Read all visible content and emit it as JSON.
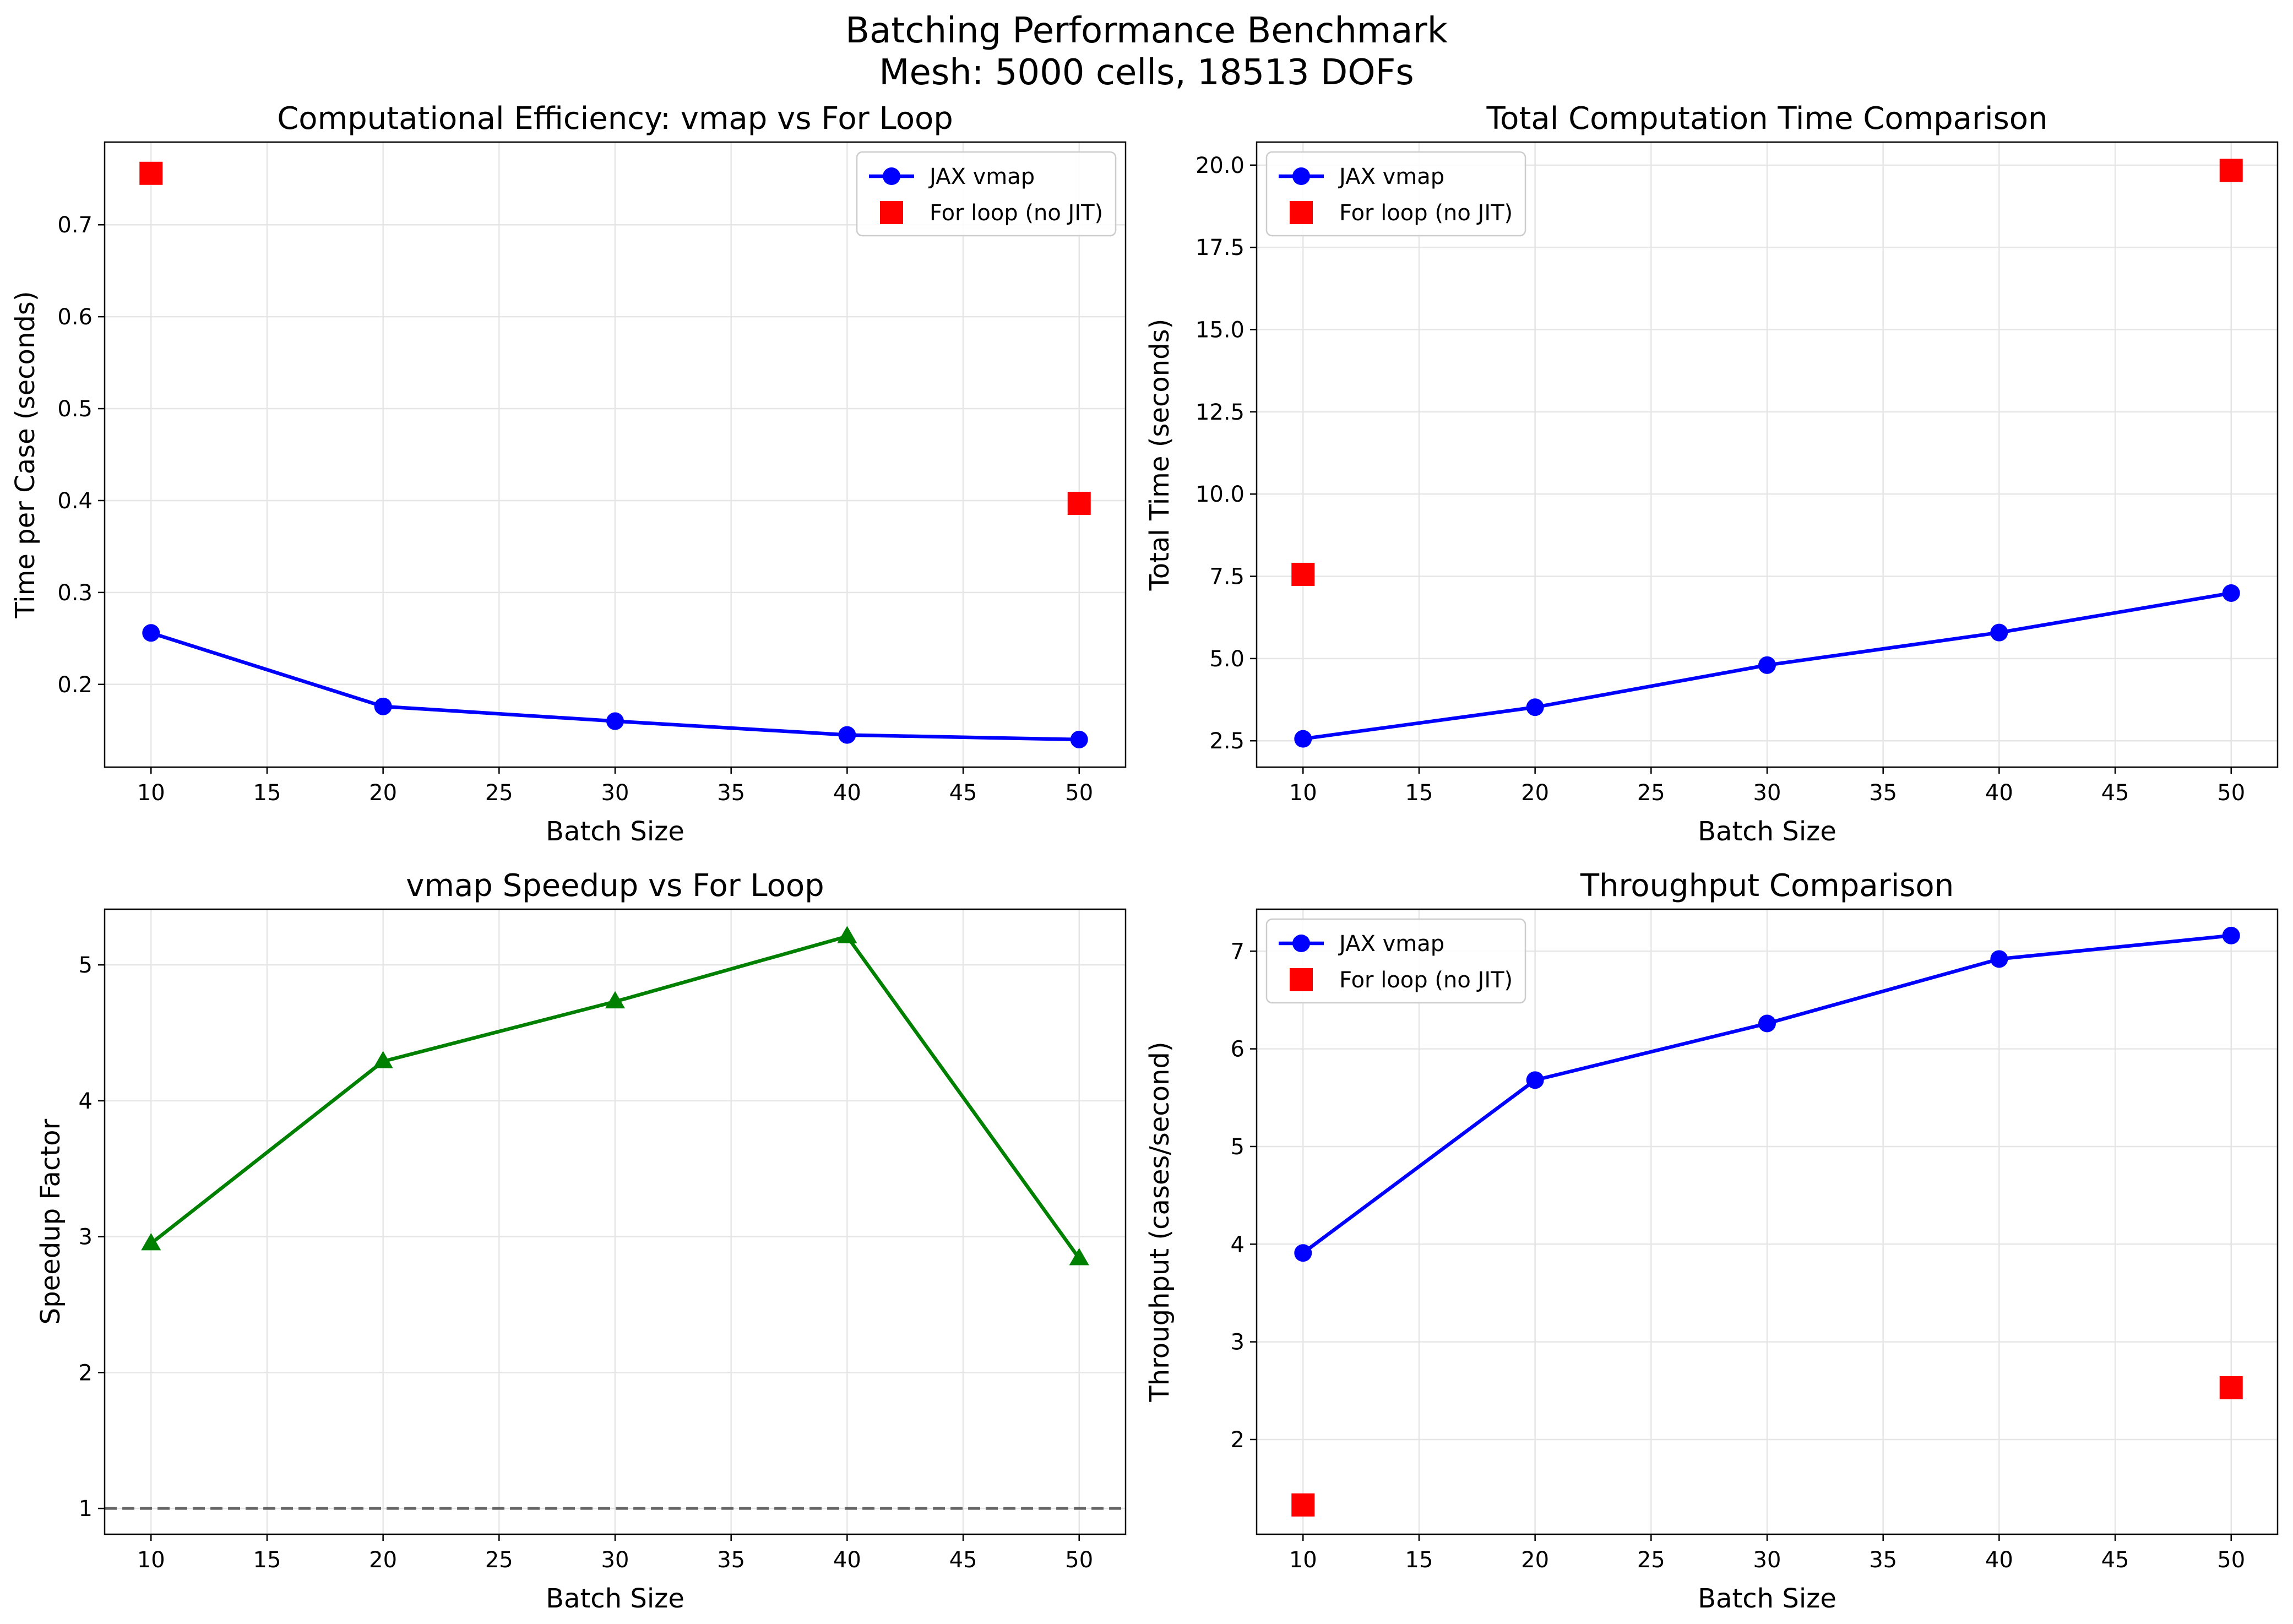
{
  "figure": {
    "title_line1": "Batching Performance Benchmark",
    "title_line2": "Mesh: 5000 cells, 18513 DOFs"
  },
  "colors": {
    "vmap": "#0000ff",
    "forloop": "#ff0000",
    "speedup": "#008000",
    "reference": "#666666",
    "grid": "#e6e6e6"
  },
  "chart_data": [
    {
      "id": "efficiency",
      "type": "line",
      "title": "Computational Efficiency: vmap vs For Loop",
      "xlabel": "Batch Size",
      "ylabel": "Time per Case (seconds)",
      "xlim": [
        8,
        52
      ],
      "ylim": [
        0.11,
        0.79
      ],
      "xticks": [
        10,
        15,
        20,
        25,
        30,
        35,
        40,
        45,
        50
      ],
      "yticks": [
        0.2,
        0.3,
        0.4,
        0.5,
        0.6,
        0.7
      ],
      "ytick_labels": [
        "0.2",
        "0.3",
        "0.4",
        "0.5",
        "0.6",
        "0.7"
      ],
      "grid": true,
      "legend": "upper right",
      "series": [
        {
          "name": "JAX vmap",
          "style": "line-circle",
          "color": "#0000ff",
          "x": [
            10,
            20,
            30,
            40,
            50
          ],
          "y": [
            0.256,
            0.176,
            0.16,
            0.145,
            0.14
          ]
        },
        {
          "name": "For loop (no JIT)",
          "style": "square",
          "color": "#ff0000",
          "x": [
            10,
            50
          ],
          "y": [
            0.756,
            0.397
          ]
        }
      ]
    },
    {
      "id": "total",
      "type": "line",
      "title": "Total Computation Time Comparison",
      "xlabel": "Batch Size",
      "ylabel": "Total Time (seconds)",
      "xlim": [
        8,
        52
      ],
      "ylim": [
        1.7,
        20.7
      ],
      "xticks": [
        10,
        15,
        20,
        25,
        30,
        35,
        40,
        45,
        50
      ],
      "yticks": [
        2.5,
        5.0,
        7.5,
        10.0,
        12.5,
        15.0,
        17.5,
        20.0
      ],
      "ytick_labels": [
        "2.5",
        "5.0",
        "7.5",
        "10.0",
        "12.5",
        "15.0",
        "17.5",
        "20.0"
      ],
      "grid": true,
      "legend": "upper left",
      "series": [
        {
          "name": "JAX vmap",
          "style": "line-circle",
          "color": "#0000ff",
          "x": [
            10,
            20,
            30,
            40,
            50
          ],
          "y": [
            2.56,
            3.52,
            4.8,
            5.79,
            6.99
          ]
        },
        {
          "name": "For loop (no JIT)",
          "style": "square",
          "color": "#ff0000",
          "x": [
            10,
            50
          ],
          "y": [
            7.56,
            19.84
          ]
        }
      ]
    },
    {
      "id": "speedup",
      "type": "line",
      "title": "vmap Speedup vs For Loop",
      "xlabel": "Batch Size",
      "ylabel": "Speedup Factor",
      "xlim": [
        8,
        52
      ],
      "ylim": [
        0.81,
        5.41
      ],
      "xticks": [
        10,
        15,
        20,
        25,
        30,
        35,
        40,
        45,
        50
      ],
      "yticks": [
        1,
        2,
        3,
        4,
        5
      ],
      "ytick_labels": [
        "1",
        "2",
        "3",
        "4",
        "5"
      ],
      "grid": true,
      "legend": "",
      "reference_line": 1,
      "series": [
        {
          "name": "",
          "style": "line-triangle",
          "color": "#008000",
          "x": [
            10,
            20,
            30,
            40,
            50
          ],
          "y": [
            2.95,
            4.29,
            4.73,
            5.21,
            2.84
          ]
        }
      ]
    },
    {
      "id": "throughput",
      "type": "line",
      "title": "Throughput Comparison",
      "xlabel": "Batch Size",
      "ylabel": "Throughput (cases/second)",
      "xlim": [
        8,
        52
      ],
      "ylim": [
        1.03,
        7.43
      ],
      "xticks": [
        10,
        15,
        20,
        25,
        30,
        35,
        40,
        45,
        50
      ],
      "yticks": [
        2,
        3,
        4,
        5,
        6,
        7
      ],
      "ytick_labels": [
        "2",
        "3",
        "4",
        "5",
        "6",
        "7"
      ],
      "grid": true,
      "legend": "upper left",
      "series": [
        {
          "name": "JAX vmap",
          "style": "line-circle",
          "color": "#0000ff",
          "x": [
            10,
            20,
            30,
            40,
            50
          ],
          "y": [
            3.91,
            5.68,
            6.26,
            6.92,
            7.16
          ]
        },
        {
          "name": "For loop (no JIT)",
          "style": "square",
          "color": "#ff0000",
          "x": [
            10,
            50
          ],
          "y": [
            1.33,
            2.53
          ]
        }
      ]
    }
  ]
}
